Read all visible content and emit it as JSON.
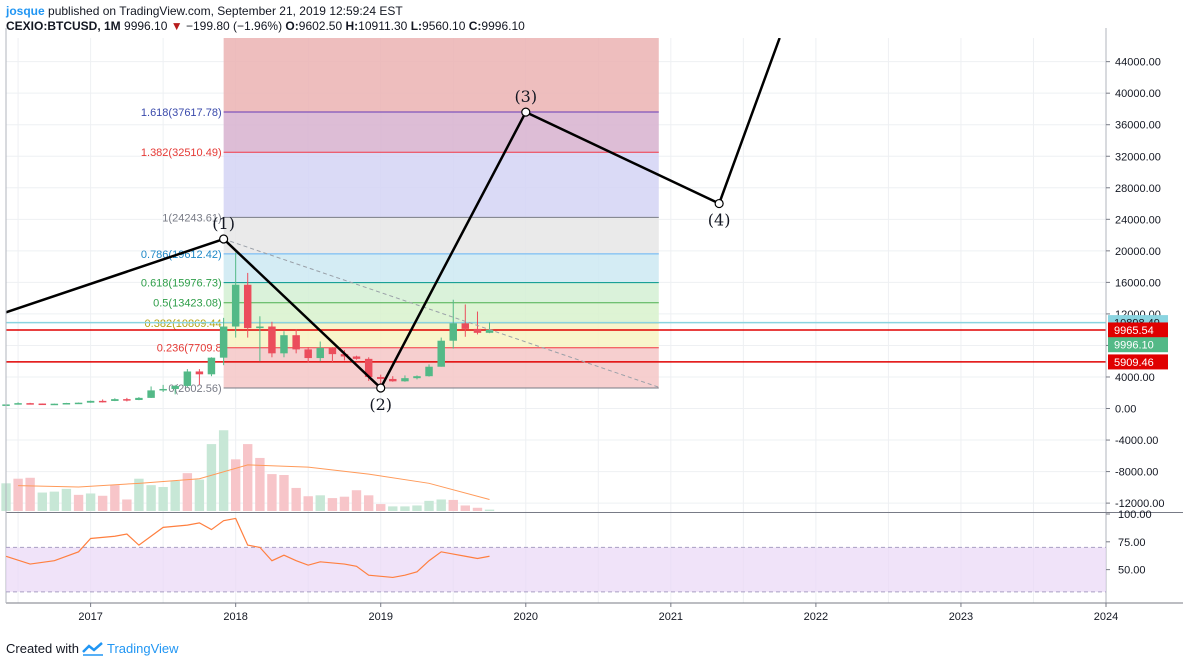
{
  "header": {
    "publisher": "josque",
    "published_text": "published on TradingView.com, September 21, 2019 12:59:24 EST",
    "symbol": "CEXIO:BTCUSD, 1M",
    "last": "9996.10",
    "change": "−199.80 (−1.96%)",
    "open_label": "O:",
    "open": "9602.50",
    "high_label": "H:",
    "high": "10911.30",
    "low_label": "L:",
    "low": "9560.10",
    "close_label": "C:",
    "close": "9996.10"
  },
  "footer": {
    "created_with": "Created with",
    "brand": "TradingView"
  },
  "colors": {
    "up": "#53b987",
    "down": "#eb4d5c",
    "up_vol": "#c7e7d6",
    "down_vol": "#f7c5c9",
    "wave": "#000000",
    "rsi": "#ff7f3f",
    "rsi_band": "#e9d7f7",
    "vol_ma": "#ff9a5a",
    "grid": "#eef0f3",
    "axis_text": "#131722",
    "hline": "#e00000"
  },
  "chart_data": [
    {
      "type": "candlestick",
      "interval": "1M",
      "ylim": [
        -13000,
        47000
      ],
      "yticks": [
        "44000.00",
        "40000.00",
        "36000.00",
        "32000.00",
        "28000.00",
        "24000.00",
        "20000.00",
        "16000.00",
        "12000.00",
        "8000.00",
        "4000.00",
        "0.00",
        "-4000.00",
        "-8000.00",
        "-12000.00"
      ],
      "xticks": [
        {
          "label": "2017",
          "t": 2017.0
        },
        {
          "label": "2018",
          "t": 2018.0
        },
        {
          "label": "2019",
          "t": 2019.0
        },
        {
          "label": "2020",
          "t": 2020.0
        },
        {
          "label": "2021",
          "t": 2021.0
        },
        {
          "label": "2022",
          "t": 2022.0
        },
        {
          "label": "2023",
          "t": 2023.0
        },
        {
          "label": "2024",
          "t": 2024.0
        }
      ],
      "candles": [
        {
          "t": 2016.417,
          "o": 480,
          "h": 560,
          "l": 450,
          "c": 520
        },
        {
          "t": 2016.5,
          "o": 520,
          "h": 780,
          "l": 500,
          "c": 680
        },
        {
          "t": 2016.583,
          "o": 680,
          "h": 720,
          "l": 600,
          "c": 630
        },
        {
          "t": 2016.667,
          "o": 630,
          "h": 640,
          "l": 560,
          "c": 575
        },
        {
          "t": 2016.75,
          "o": 575,
          "h": 620,
          "l": 560,
          "c": 610
        },
        {
          "t": 2016.833,
          "o": 610,
          "h": 720,
          "l": 600,
          "c": 700
        },
        {
          "t": 2016.917,
          "o": 700,
          "h": 760,
          "l": 680,
          "c": 740
        },
        {
          "t": 2017.0,
          "o": 740,
          "h": 1000,
          "l": 730,
          "c": 970
        },
        {
          "t": 2017.083,
          "o": 970,
          "h": 1150,
          "l": 760,
          "c": 960
        },
        {
          "t": 2017.167,
          "o": 960,
          "h": 1300,
          "l": 940,
          "c": 1190
        },
        {
          "t": 2017.25,
          "o": 1190,
          "h": 1350,
          "l": 900,
          "c": 1080
        },
        {
          "t": 2017.333,
          "o": 1080,
          "h": 1450,
          "l": 1060,
          "c": 1350
        },
        {
          "t": 2017.417,
          "o": 1350,
          "h": 2800,
          "l": 1340,
          "c": 2300
        },
        {
          "t": 2017.5,
          "o": 2300,
          "h": 3000,
          "l": 2100,
          "c": 2480
        },
        {
          "t": 2017.583,
          "o": 2480,
          "h": 3000,
          "l": 1800,
          "c": 2870
        },
        {
          "t": 2017.667,
          "o": 2870,
          "h": 5000,
          "l": 2700,
          "c": 4700
        },
        {
          "t": 2017.75,
          "o": 4700,
          "h": 5000,
          "l": 3000,
          "c": 4340
        },
        {
          "t": 2017.833,
          "o": 4340,
          "h": 6500,
          "l": 4100,
          "c": 6450
        },
        {
          "t": 2017.917,
          "o": 6450,
          "h": 11500,
          "l": 5500,
          "c": 10400
        },
        {
          "t": 2018.0,
          "o": 10400,
          "h": 19800,
          "l": 9000,
          "c": 15700
        },
        {
          "t": 2018.083,
          "o": 15700,
          "h": 17200,
          "l": 9000,
          "c": 10200
        },
        {
          "t": 2018.167,
          "o": 10200,
          "h": 11700,
          "l": 6000,
          "c": 10400
        },
        {
          "t": 2018.25,
          "o": 10400,
          "h": 11000,
          "l": 6500,
          "c": 7000
        },
        {
          "t": 2018.333,
          "o": 7000,
          "h": 9800,
          "l": 6500,
          "c": 9300
        },
        {
          "t": 2018.417,
          "o": 9300,
          "h": 10000,
          "l": 7000,
          "c": 7500
        },
        {
          "t": 2018.5,
          "o": 7500,
          "h": 7800,
          "l": 5800,
          "c": 6400
        },
        {
          "t": 2018.583,
          "o": 6400,
          "h": 8500,
          "l": 6000,
          "c": 7700
        },
        {
          "t": 2018.667,
          "o": 7700,
          "h": 7800,
          "l": 5900,
          "c": 6900
        },
        {
          "t": 2018.75,
          "o": 6900,
          "h": 7400,
          "l": 6100,
          "c": 6600
        },
        {
          "t": 2018.833,
          "o": 6600,
          "h": 6700,
          "l": 6200,
          "c": 6300
        },
        {
          "t": 2018.917,
          "o": 6300,
          "h": 6500,
          "l": 3500,
          "c": 4000
        },
        {
          "t": 2019.0,
          "o": 4000,
          "h": 4300,
          "l": 3100,
          "c": 3750
        },
        {
          "t": 2019.083,
          "o": 3750,
          "h": 4100,
          "l": 3400,
          "c": 3450
        },
        {
          "t": 2019.167,
          "o": 3450,
          "h": 4200,
          "l": 3400,
          "c": 3850
        },
        {
          "t": 2019.25,
          "o": 3850,
          "h": 4200,
          "l": 3700,
          "c": 4100
        },
        {
          "t": 2019.333,
          "o": 4100,
          "h": 5600,
          "l": 4050,
          "c": 5300
        },
        {
          "t": 2019.417,
          "o": 5300,
          "h": 9000,
          "l": 5300,
          "c": 8600
        },
        {
          "t": 2019.5,
          "o": 8600,
          "h": 13800,
          "l": 7600,
          "c": 10800
        },
        {
          "t": 2019.583,
          "o": 10800,
          "h": 13200,
          "l": 9100,
          "c": 10100
        },
        {
          "t": 2019.667,
          "o": 10100,
          "h": 12300,
          "l": 9400,
          "c": 9600
        },
        {
          "t": 2019.75,
          "o": 9602.5,
          "h": 10911.3,
          "l": 9560.1,
          "c": 9996.1
        }
      ],
      "volume": [
        {
          "t": 2016.417,
          "v": 0.6,
          "up": true
        },
        {
          "t": 2016.5,
          "v": 0.7,
          "up": false
        },
        {
          "t": 2016.583,
          "v": 0.72,
          "up": false
        },
        {
          "t": 2016.667,
          "v": 0.4,
          "up": true
        },
        {
          "t": 2016.75,
          "v": 0.42,
          "up": true
        },
        {
          "t": 2016.833,
          "v": 0.48,
          "up": true
        },
        {
          "t": 2016.917,
          "v": 0.35,
          "up": false
        },
        {
          "t": 2017.0,
          "v": 0.38,
          "up": true
        },
        {
          "t": 2017.083,
          "v": 0.33,
          "up": false
        },
        {
          "t": 2017.167,
          "v": 0.56,
          "up": false
        },
        {
          "t": 2017.25,
          "v": 0.25,
          "up": false
        },
        {
          "t": 2017.333,
          "v": 0.7,
          "up": true
        },
        {
          "t": 2017.417,
          "v": 0.56,
          "up": true
        },
        {
          "t": 2017.5,
          "v": 0.52,
          "up": true
        },
        {
          "t": 2017.583,
          "v": 0.65,
          "up": true
        },
        {
          "t": 2017.667,
          "v": 0.82,
          "up": false
        },
        {
          "t": 2017.75,
          "v": 0.68,
          "up": true
        },
        {
          "t": 2017.833,
          "v": 1.45,
          "up": true
        },
        {
          "t": 2017.917,
          "v": 1.75,
          "up": true
        },
        {
          "t": 2018.0,
          "v": 1.12,
          "up": false
        },
        {
          "t": 2018.083,
          "v": 1.45,
          "up": false
        },
        {
          "t": 2018.167,
          "v": 1.15,
          "up": false
        },
        {
          "t": 2018.25,
          "v": 0.8,
          "up": false
        },
        {
          "t": 2018.333,
          "v": 0.78,
          "up": false
        },
        {
          "t": 2018.417,
          "v": 0.5,
          "up": false
        },
        {
          "t": 2018.5,
          "v": 0.32,
          "up": false
        },
        {
          "t": 2018.583,
          "v": 0.34,
          "up": true
        },
        {
          "t": 2018.667,
          "v": 0.28,
          "up": false
        },
        {
          "t": 2018.75,
          "v": 0.31,
          "up": false
        },
        {
          "t": 2018.833,
          "v": 0.45,
          "up": false
        },
        {
          "t": 2018.917,
          "v": 0.34,
          "up": false
        },
        {
          "t": 2019.0,
          "v": 0.15,
          "up": false
        },
        {
          "t": 2019.083,
          "v": 0.1,
          "up": true
        },
        {
          "t": 2019.167,
          "v": 0.1,
          "up": true
        },
        {
          "t": 2019.25,
          "v": 0.12,
          "up": true
        },
        {
          "t": 2019.333,
          "v": 0.22,
          "up": true
        },
        {
          "t": 2019.417,
          "v": 0.25,
          "up": true
        },
        {
          "t": 2019.5,
          "v": 0.24,
          "up": false
        },
        {
          "t": 2019.583,
          "v": 0.12,
          "up": false
        },
        {
          "t": 2019.667,
          "v": 0.07,
          "up": false
        },
        {
          "t": 2019.75,
          "v": 0.03,
          "up": true
        }
      ],
      "fib_levels": [
        {
          "ratio": "0",
          "label": "0(2602.56)",
          "price": 2602.56,
          "text_color": "#787b86",
          "line_color": "#787b86"
        },
        {
          "ratio": "0.236",
          "label": "0.236(7709.8",
          "price": 7709.8,
          "text_color": "#e53935",
          "line_color": "#f23645"
        },
        {
          "ratio": "0.382",
          "label": "0.382(10869.44",
          "price": 10869.44,
          "text_color": "#b5a315",
          "line_color": "#9e9d24"
        },
        {
          "ratio": "0.5",
          "label": "0.5(13423.08)",
          "price": 13423.08,
          "text_color": "#2e9e49",
          "line_color": "#4caf50"
        },
        {
          "ratio": "0.618",
          "label": "0.618(15976.73)",
          "price": 15976.73,
          "text_color": "#2e9e49",
          "line_color": "#009688"
        },
        {
          "ratio": "0.786",
          "label": "0.786(19612.42)",
          "price": 19612.42,
          "text_color": "#1e88c7",
          "line_color": "#64b5f6"
        },
        {
          "ratio": "1",
          "label": "1(24243.61)",
          "price": 24243.61,
          "text_color": "#787b86",
          "line_color": "#787b86"
        },
        {
          "ratio": "1.382",
          "label": "1.382(32510.49)",
          "price": 32510.49,
          "text_color": "#e53935",
          "line_color": "#f23645"
        },
        {
          "ratio": "1.618",
          "label": "1.618(37617.78)",
          "price": 37617.78,
          "text_color": "#3949ab",
          "line_color": "#673ab7"
        }
      ],
      "fib_zones": [
        {
          "from": 2602.56,
          "to": 7709.8,
          "color": "#f4c7c7"
        },
        {
          "from": 7709.8,
          "to": 10869.44,
          "color": "#f7f3c2"
        },
        {
          "from": 10869.44,
          "to": 13423.08,
          "color": "#d8f2cc"
        },
        {
          "from": 13423.08,
          "to": 15976.73,
          "color": "#d4f0d4"
        },
        {
          "from": 15976.73,
          "to": 19612.42,
          "color": "#cde9f2"
        },
        {
          "from": 19612.42,
          "to": 24243.61,
          "color": "#e6e6e6"
        },
        {
          "from": 24243.61,
          "to": 32510.49,
          "color": "#d3d3f5"
        },
        {
          "from": 32510.49,
          "to": 37617.78,
          "color": "#d7b2cf"
        },
        {
          "from": 37617.78,
          "to": 47000,
          "color": "#ebb3b3"
        }
      ],
      "fib_range_t": [
        2017.917,
        2020.917
      ],
      "wave": [
        {
          "t": 2016.417,
          "p": 12200,
          "label": ""
        },
        {
          "t": 2017.917,
          "p": 21500,
          "label": "(1)"
        },
        {
          "t": 2019.0,
          "p": 2600,
          "label": "(2)"
        },
        {
          "t": 2020.0,
          "p": 37600,
          "label": "(3)"
        },
        {
          "t": 2021.333,
          "p": 26000,
          "label": "(4)"
        },
        {
          "t": 2021.75,
          "p": 47000,
          "label": ""
        }
      ],
      "trend_dashed": [
        {
          "t": 2017.917,
          "p": 21500
        },
        {
          "t": 2020.917,
          "p": 2700
        }
      ],
      "hlines": [
        {
          "price": 9965.54
        },
        {
          "price": 5909.46
        }
      ],
      "price_tags": [
        {
          "label": "10898.49",
          "price": 10898.49,
          "bg": "#8ad4e0",
          "fg": "#131722"
        },
        {
          "label": "9965.54",
          "price": 9965.54,
          "bg": "#e00000",
          "fg": "#ffffff"
        },
        {
          "label": "9996.10",
          "price": 9996.1,
          "bg": "#53b987",
          "fg": "#ffffff"
        },
        {
          "label": "5909.46",
          "price": 5909.46,
          "bg": "#e00000",
          "fg": "#ffffff"
        }
      ],
      "highlight_line": {
        "price": 10898.49,
        "color": "#8ad4e0"
      },
      "volume_ma": [
        {
          "t": 2016.5,
          "v": 0.55
        },
        {
          "t": 2016.917,
          "v": 0.52
        },
        {
          "t": 2017.333,
          "v": 0.6
        },
        {
          "t": 2017.75,
          "v": 0.7
        },
        {
          "t": 2018.083,
          "v": 1.0
        },
        {
          "t": 2018.5,
          "v": 0.95
        },
        {
          "t": 2018.917,
          "v": 0.8
        },
        {
          "t": 2019.333,
          "v": 0.6
        },
        {
          "t": 2019.75,
          "v": 0.25
        }
      ]
    },
    {
      "type": "line",
      "series_role": "rsi",
      "ylim": [
        20,
        100
      ],
      "yticks": [
        "100.00",
        "75.00",
        "50.00"
      ],
      "band": [
        30,
        70
      ],
      "points": [
        {
          "t": 2016.417,
          "v": 62
        },
        {
          "t": 2016.583,
          "v": 55
        },
        {
          "t": 2016.75,
          "v": 58
        },
        {
          "t": 2016.917,
          "v": 66
        },
        {
          "t": 2017.0,
          "v": 78
        },
        {
          "t": 2017.167,
          "v": 80
        },
        {
          "t": 2017.25,
          "v": 82
        },
        {
          "t": 2017.333,
          "v": 72
        },
        {
          "t": 2017.5,
          "v": 88
        },
        {
          "t": 2017.667,
          "v": 90
        },
        {
          "t": 2017.75,
          "v": 92
        },
        {
          "t": 2017.833,
          "v": 86
        },
        {
          "t": 2017.917,
          "v": 94
        },
        {
          "t": 2018.0,
          "v": 96
        },
        {
          "t": 2018.083,
          "v": 72
        },
        {
          "t": 2018.167,
          "v": 70
        },
        {
          "t": 2018.25,
          "v": 58
        },
        {
          "t": 2018.333,
          "v": 63
        },
        {
          "t": 2018.417,
          "v": 58
        },
        {
          "t": 2018.5,
          "v": 54
        },
        {
          "t": 2018.583,
          "v": 57
        },
        {
          "t": 2018.75,
          "v": 55
        },
        {
          "t": 2018.833,
          "v": 53
        },
        {
          "t": 2018.917,
          "v": 45
        },
        {
          "t": 2019.0,
          "v": 44
        },
        {
          "t": 2019.083,
          "v": 43
        },
        {
          "t": 2019.167,
          "v": 45
        },
        {
          "t": 2019.25,
          "v": 48
        },
        {
          "t": 2019.333,
          "v": 58
        },
        {
          "t": 2019.417,
          "v": 66
        },
        {
          "t": 2019.5,
          "v": 64
        },
        {
          "t": 2019.583,
          "v": 62
        },
        {
          "t": 2019.667,
          "v": 60
        },
        {
          "t": 2019.75,
          "v": 62
        }
      ]
    }
  ]
}
